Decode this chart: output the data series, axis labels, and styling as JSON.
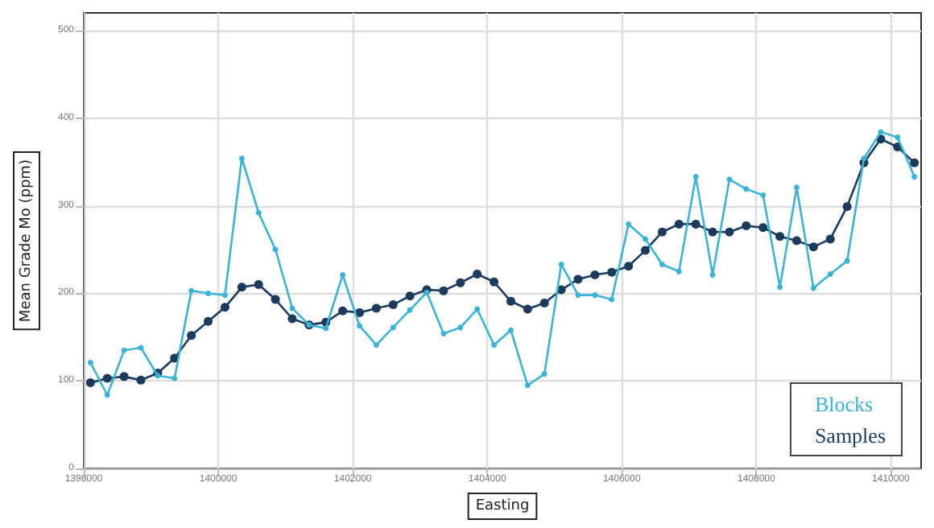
{
  "chart_data": {
    "type": "line",
    "xlabel": "Easting",
    "ylabel": "Mean Grade Mo (ppm)",
    "x": [
      1398100,
      1398350,
      1398600,
      1398850,
      1399100,
      1399350,
      1399600,
      1399850,
      1400100,
      1400350,
      1400600,
      1400850,
      1401100,
      1401350,
      1401600,
      1401850,
      1402100,
      1402350,
      1402600,
      1402850,
      1403100,
      1403350,
      1403600,
      1403850,
      1404100,
      1404350,
      1404600,
      1404850,
      1405100,
      1405350,
      1405600,
      1405850,
      1406100,
      1406350,
      1406600,
      1406850,
      1407100,
      1407350,
      1407600,
      1407850,
      1408100,
      1408350,
      1408600,
      1408850,
      1409100,
      1409350,
      1409600,
      1409850,
      1410100,
      1410350
    ],
    "series": [
      {
        "name": "Blocks",
        "color": "#3bb3d3",
        "values": [
          121,
          84,
          135,
          138,
          106,
          103,
          203,
          200,
          198,
          354,
          292,
          250,
          183,
          164,
          160,
          221,
          163,
          141,
          161,
          181,
          201,
          154,
          161,
          182,
          141,
          158,
          95,
          108,
          233,
          198,
          198,
          193,
          279,
          262,
          233,
          225,
          333,
          221,
          330,
          319,
          312,
          207,
          321,
          206,
          222,
          237,
          354,
          384,
          378,
          333
        ]
      },
      {
        "name": "Samples",
        "color": "#1b3a5c",
        "values": [
          98,
          103,
          105,
          101,
          109,
          126,
          152,
          168,
          184,
          207,
          210,
          193,
          171,
          164,
          167,
          180,
          178,
          183,
          187,
          197,
          204,
          203,
          212,
          222,
          213,
          191,
          182,
          189,
          204,
          216,
          221,
          224,
          231,
          249,
          270,
          279,
          279,
          270,
          270,
          277,
          275,
          265,
          260,
          253,
          262,
          299,
          349,
          376,
          367,
          349
        ]
      }
    ],
    "xlim": [
      1398000,
      1410450
    ],
    "xticks": [
      1398000,
      1400000,
      1402000,
      1404000,
      1406000,
      1408000,
      1410000
    ],
    "ylim": [
      0,
      520
    ],
    "yticks": [
      0,
      100,
      200,
      300,
      400,
      500
    ],
    "grid": true,
    "legend": "bottom right",
    "marker": "circle",
    "line_style": "solid"
  }
}
